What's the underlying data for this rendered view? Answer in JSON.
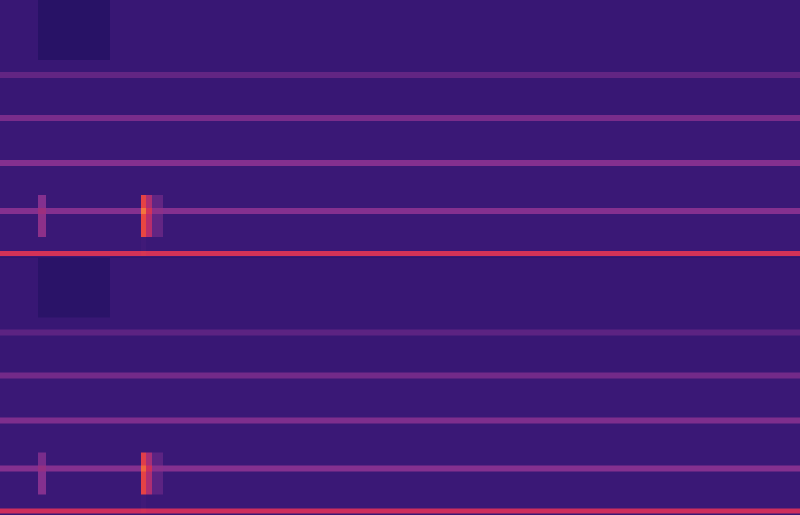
{
  "chart_data": [
    {
      "type": "heatmap",
      "tick_labels": false,
      "xlim": [
        0,
        800
      ],
      "ylim": [
        0,
        257
      ],
      "zlim": [
        0,
        100
      ],
      "x": [
        0,
        38,
        46,
        110,
        141,
        146,
        152,
        163,
        800
      ],
      "y": [
        0,
        2,
        6,
        20,
        43,
        49,
        62,
        91,
        97,
        136,
        142,
        179,
        185,
        197,
        257
      ],
      "cells": [
        [
          45,
          45,
          45,
          45,
          45,
          45,
          45,
          45
        ],
        [
          78,
          78,
          78,
          78,
          80,
          78,
          78,
          78
        ],
        [
          45,
          45,
          45,
          45,
          46,
          45,
          45,
          45
        ],
        [
          45,
          60,
          45,
          45,
          88,
          70,
          52,
          45
        ],
        [
          58,
          64,
          58,
          58,
          95,
          78,
          60,
          58
        ],
        [
          45,
          58,
          45,
          45,
          86,
          68,
          52,
          45
        ],
        [
          45,
          45,
          45,
          45,
          45,
          45,
          45,
          45
        ],
        [
          58,
          58,
          58,
          58,
          58,
          58,
          58,
          58
        ],
        [
          45,
          45,
          45,
          45,
          45,
          45,
          45,
          45
        ],
        [
          56,
          56,
          56,
          56,
          56,
          56,
          56,
          56
        ],
        [
          44,
          44,
          44,
          44,
          44,
          44,
          44,
          44
        ],
        [
          52,
          52,
          52,
          52,
          52,
          52,
          52,
          52
        ],
        [
          44,
          44,
          44,
          44,
          44,
          44,
          44,
          44
        ],
        [
          44,
          36,
          36,
          44,
          44,
          44,
          44,
          44
        ]
      ]
    },
    {
      "type": "heatmap",
      "tick_labels": false,
      "xlim": [
        0,
        800
      ],
      "ylim": [
        0,
        257
      ],
      "zlim": [
        0,
        100
      ],
      "x": [
        0,
        38,
        46,
        110,
        141,
        146,
        152,
        163,
        800
      ],
      "y": [
        0,
        2,
        6,
        20,
        43,
        49,
        62,
        91,
        97,
        136,
        142,
        179,
        185,
        197,
        257
      ],
      "cells": [
        [
          45,
          45,
          45,
          45,
          45,
          45,
          45,
          45
        ],
        [
          76,
          76,
          76,
          76,
          78,
          76,
          76,
          76
        ],
        [
          45,
          45,
          45,
          45,
          46,
          45,
          45,
          45
        ],
        [
          45,
          58,
          45,
          45,
          86,
          68,
          51,
          45
        ],
        [
          58,
          62,
          58,
          58,
          93,
          76,
          59,
          58
        ],
        [
          45,
          56,
          45,
          45,
          84,
          66,
          51,
          45
        ],
        [
          45,
          45,
          45,
          45,
          45,
          45,
          45,
          45
        ],
        [
          57,
          57,
          57,
          57,
          57,
          57,
          57,
          57
        ],
        [
          45,
          45,
          45,
          45,
          45,
          45,
          45,
          45
        ],
        [
          55,
          55,
          55,
          55,
          55,
          55,
          55,
          55
        ],
        [
          44,
          44,
          44,
          44,
          44,
          44,
          44,
          44
        ],
        [
          51,
          51,
          51,
          51,
          51,
          51,
          51,
          51
        ],
        [
          44,
          44,
          44,
          44,
          44,
          44,
          44,
          44
        ],
        [
          44,
          37,
          37,
          44,
          44,
          44,
          44,
          44
        ]
      ]
    }
  ]
}
